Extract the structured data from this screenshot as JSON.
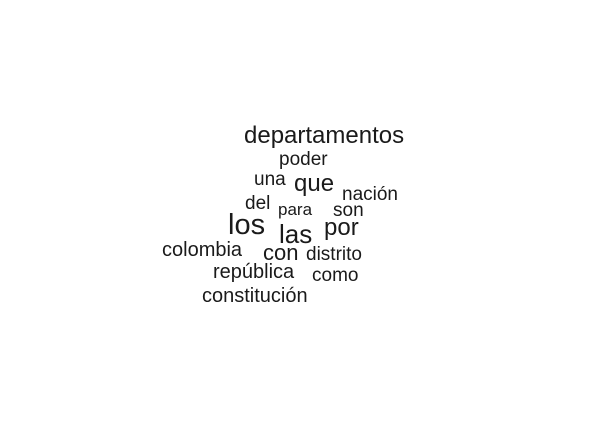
{
  "word_cloud": {
    "words": [
      {
        "text": "departamentos"
      },
      {
        "text": "poder"
      },
      {
        "text": "una"
      },
      {
        "text": "que"
      },
      {
        "text": "nación"
      },
      {
        "text": "del"
      },
      {
        "text": "para"
      },
      {
        "text": "son"
      },
      {
        "text": "los"
      },
      {
        "text": "las"
      },
      {
        "text": "por"
      },
      {
        "text": "colombia"
      },
      {
        "text": "con"
      },
      {
        "text": "distrito"
      },
      {
        "text": "república"
      },
      {
        "text": "como"
      },
      {
        "text": "constitución"
      }
    ],
    "colors": {
      "text": "#1a1a1a",
      "background": "#ffffff"
    }
  }
}
